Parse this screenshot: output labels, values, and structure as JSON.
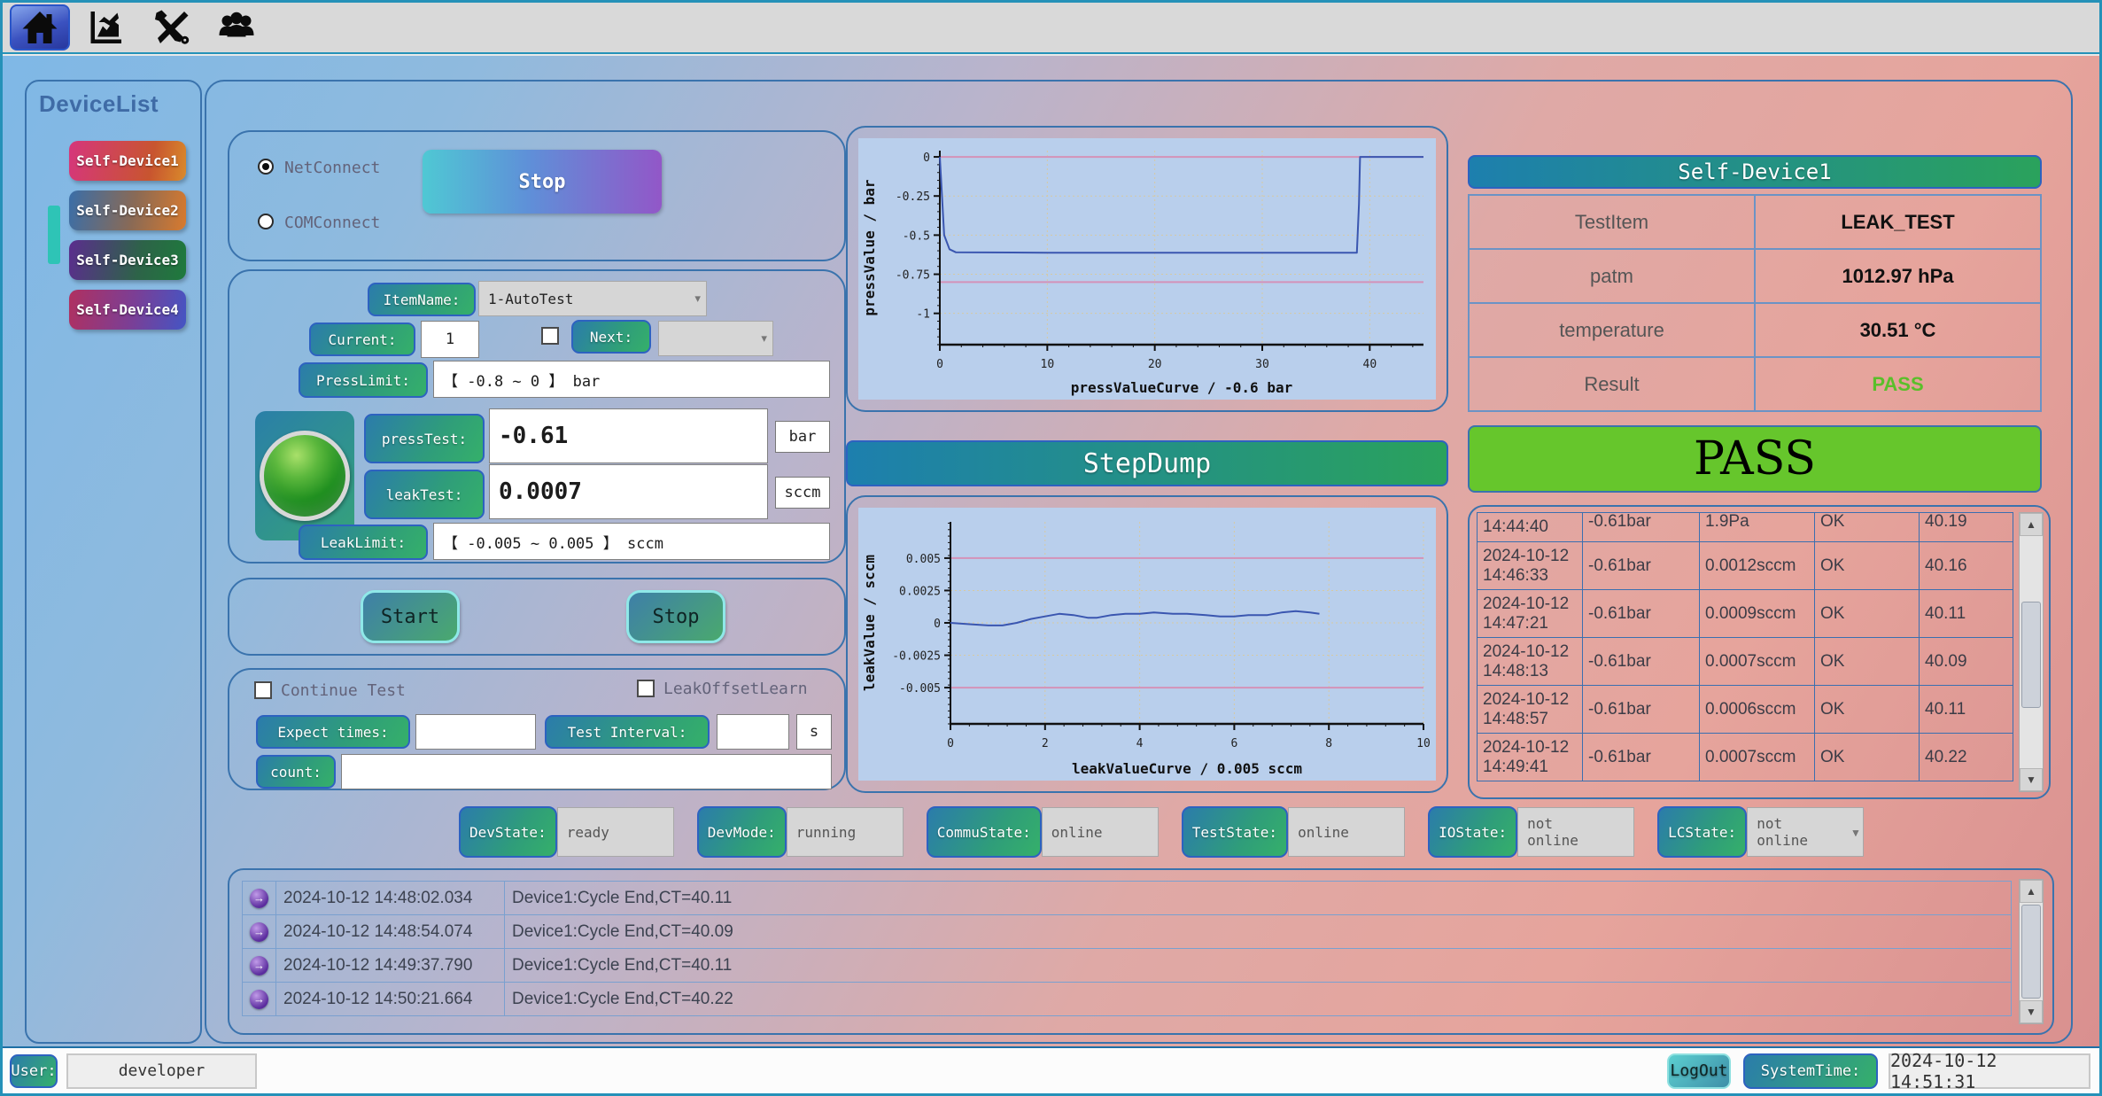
{
  "toolbar": {
    "icons": [
      {
        "name": "home"
      },
      {
        "name": "line-chart"
      },
      {
        "name": "tools"
      },
      {
        "name": "users"
      }
    ]
  },
  "sidebar": {
    "title": "DeviceList",
    "devices": [
      "Self-Device1",
      "Self-Device2",
      "Self-Device3",
      "Self-Device4"
    ]
  },
  "connect": {
    "net": "NetConnect",
    "com": "COMConnect",
    "stop": "Stop"
  },
  "params": {
    "item_label": "ItemName:",
    "item_value": "1-AutoTest",
    "current_label": "Current:",
    "current_value": "1",
    "next_label": "Next:",
    "next_value": "",
    "press_limit_label": "PressLimit:",
    "press_limit_value": "【 -0.8  ~  0 】  bar",
    "press_test_label": "pressTest:",
    "press_test_value": "-0.61",
    "press_test_unit": "bar",
    "leak_test_label": "leakTest:",
    "leak_test_value": "0.0007",
    "leak_test_unit": "sccm",
    "leak_limit_label": "LeakLimit:",
    "leak_limit_value": "【 -0.005  ~  0.005 】  sccm",
    "indicator_color": "#2f9e2f"
  },
  "actions": {
    "start": "Start",
    "stop": "Stop"
  },
  "options": {
    "continue_label": "Continue Test",
    "leak_offset_label": "LeakOffsetLearn",
    "expect_label": "Expect times:",
    "expect_value": "",
    "interval_label": "Test Interval:",
    "interval_value": "",
    "interval_unit": "s",
    "count_label": "count:",
    "count_value": ""
  },
  "step_dump": "StepDump",
  "device_panel": {
    "title": "Self-Device1",
    "rows": [
      {
        "label": "TestItem",
        "value": "LEAK_TEST"
      },
      {
        "label": "patm",
        "value": "1012.97 hPa"
      },
      {
        "label": "temperature",
        "value": "30.51 °C"
      },
      {
        "label": "Result",
        "value": "PASS"
      }
    ],
    "verdict": "PASS",
    "verdict_bg": "#66c62c",
    "result_color": "#5abf2a"
  },
  "history": {
    "rows": [
      {
        "date": "",
        "time": "14:44:40",
        "press": "-0.61bar",
        "leak": "1.9Pa",
        "result": "OK",
        "ct": "40.19"
      },
      {
        "date": "2024-10-12",
        "time": "14:46:33",
        "press": "-0.61bar",
        "leak": "0.0012sccm",
        "result": "OK",
        "ct": "40.16"
      },
      {
        "date": "2024-10-12",
        "time": "14:47:21",
        "press": "-0.61bar",
        "leak": "0.0009sccm",
        "result": "OK",
        "ct": "40.11"
      },
      {
        "date": "2024-10-12",
        "time": "14:48:13",
        "press": "-0.61bar",
        "leak": "0.0007sccm",
        "result": "OK",
        "ct": "40.09"
      },
      {
        "date": "2024-10-12",
        "time": "14:48:57",
        "press": "-0.61bar",
        "leak": "0.0006sccm",
        "result": "OK",
        "ct": "40.11"
      },
      {
        "date": "2024-10-12",
        "time": "14:49:41",
        "press": "-0.61bar",
        "leak": "0.0007sccm",
        "result": "OK",
        "ct": "40.22"
      }
    ]
  },
  "status": {
    "items": [
      {
        "label": "DevState:",
        "value": "ready"
      },
      {
        "label": "DevMode:",
        "value": "running"
      },
      {
        "label": "CommuState:",
        "value": "online"
      },
      {
        "label": "TestState:",
        "value": "online"
      },
      {
        "label": "IOState:",
        "value": "not online"
      },
      {
        "label": "LCState:",
        "value": "not online"
      }
    ]
  },
  "log": {
    "rows": [
      {
        "time": "2024-10-12 14:48:02.034",
        "msg": "Device1:Cycle End,CT=40.11"
      },
      {
        "time": "2024-10-12 14:48:54.074",
        "msg": "Device1:Cycle End,CT=40.09"
      },
      {
        "time": "2024-10-12 14:49:37.790",
        "msg": "Device1:Cycle End,CT=40.11"
      },
      {
        "time": "2024-10-12 14:50:21.664",
        "msg": "Device1:Cycle End,CT=40.22"
      }
    ]
  },
  "statusbar": {
    "user_label": "User:",
    "user_value": "developer",
    "logout": "LogOut",
    "time_label": "SystemTime:",
    "time_value": "2024-10-12 14:51:31"
  },
  "chart_data": [
    {
      "type": "line",
      "title": "pressValueCurve / -0.6 bar",
      "ylabel": "pressValue / bar",
      "xlim": [
        0,
        45
      ],
      "ylim": [
        -1.2,
        0.04
      ],
      "xticks": [
        0,
        10,
        20,
        30,
        40
      ],
      "yticks": [
        0,
        -0.25,
        -0.5,
        -0.75,
        -1
      ],
      "grid": true,
      "legend": "none",
      "limit_lines": [
        0,
        -0.8
      ],
      "limit_color": "#d492b8",
      "series": [
        {
          "name": "pressValue",
          "color": "#3a56b0",
          "points": [
            [
              0,
              0
            ],
            [
              0.4,
              -0.5
            ],
            [
              0.9,
              -0.59
            ],
            [
              1.5,
              -0.61
            ],
            [
              10,
              -0.612
            ],
            [
              20,
              -0.612
            ],
            [
              30,
              -0.612
            ],
            [
              38.8,
              -0.612
            ],
            [
              39,
              -0.3
            ],
            [
              39.1,
              0
            ],
            [
              45,
              0
            ]
          ]
        }
      ]
    },
    {
      "type": "line",
      "title": "leakValueCurve / 0.005 sccm",
      "ylabel": "leakValue / sccm",
      "xlim": [
        0,
        10
      ],
      "ylim": [
        -0.0078,
        0.0078
      ],
      "xticks": [
        0,
        2,
        4,
        6,
        8,
        10
      ],
      "yticks": [
        0.005,
        0.0025,
        0,
        -0.0025,
        -0.005
      ],
      "grid": true,
      "legend": "none",
      "limit_lines": [
        0.005,
        -0.005
      ],
      "limit_color": "#d492b8",
      "series": [
        {
          "name": "leakValue",
          "color": "#3a56b0",
          "points": [
            [
              0,
              0
            ],
            [
              0.4,
              -0.0001
            ],
            [
              0.8,
              -0.0002
            ],
            [
              1.1,
              -0.0002
            ],
            [
              1.4,
              0
            ],
            [
              1.7,
              0.0003
            ],
            [
              2,
              0.0005
            ],
            [
              2.3,
              0.0007
            ],
            [
              2.6,
              0.0006
            ],
            [
              2.9,
              0.0004
            ],
            [
              3.1,
              0.0004
            ],
            [
              3.4,
              0.0006
            ],
            [
              3.7,
              0.0007
            ],
            [
              4,
              0.0007
            ],
            [
              4.3,
              0.0008
            ],
            [
              4.7,
              0.0007
            ],
            [
              5,
              0.0007
            ],
            [
              5.4,
              0.0006
            ],
            [
              5.7,
              0.0005
            ],
            [
              6,
              0.0005
            ],
            [
              6.3,
              0.0006
            ],
            [
              6.7,
              0.0006
            ],
            [
              7,
              0.0008
            ],
            [
              7.3,
              0.0009
            ],
            [
              7.6,
              0.0008
            ],
            [
              7.8,
              0.0007
            ]
          ]
        }
      ]
    }
  ]
}
